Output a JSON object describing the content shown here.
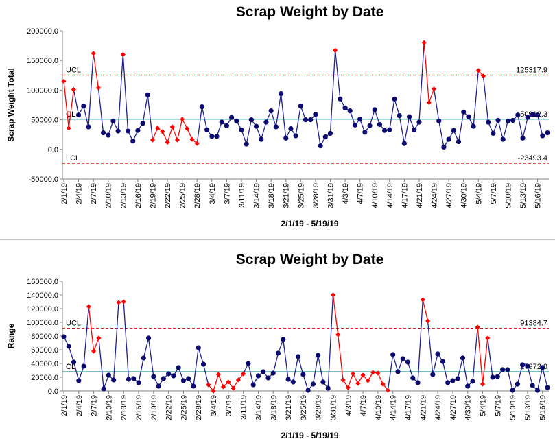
{
  "colors": {
    "line": "#1f1f8f",
    "point": "#0a0a6e",
    "out": "#ff0000",
    "cl": "#2e9a9a",
    "limit": "#d81f1f",
    "axis": "#808080"
  },
  "chart_data": [
    {
      "type": "line",
      "title": "Scrap Weight by Date",
      "xlabel": "2/1/19 - 5/19/19",
      "ylabel": "Scrap Weight Total",
      "ylim": [
        -50000,
        200000
      ],
      "yticks": [
        "200000.0",
        "150000.0",
        "100000.0",
        "50000.0",
        "0.0",
        "-50000.0"
      ],
      "ytick_values": [
        200000,
        150000,
        100000,
        50000,
        0,
        -50000
      ],
      "xticks": [
        "2/1/19",
        "2/4/19",
        "2/7/19",
        "2/10/19",
        "2/13/19",
        "2/16/19",
        "2/19/19",
        "2/22/19",
        "2/25/19",
        "2/28/19",
        "3/4/19",
        "3/7/19",
        "3/11/19",
        "3/14/19",
        "3/18/19",
        "3/21/19",
        "3/25/19",
        "3/28/19",
        "3/31/19",
        "4/3/19",
        "4/7/19",
        "4/10/19",
        "4/14/19",
        "4/17/19",
        "4/21/19",
        "4/24/19",
        "4/27/19",
        "4/30/19",
        "5/4/19",
        "5/7/19",
        "5/10/19",
        "5/13/19",
        "5/16/19"
      ],
      "ucl": 125317.9,
      "cl": 50912.3,
      "lcl": -23493.4,
      "ucl_label": "UCL",
      "cl_label": "CL",
      "lcl_label": "LCL",
      "ucl_text": "125317.9",
      "cl_text": "50912.3",
      "lcl_text": "-23493.4",
      "values": [
        115000,
        36000,
        101000,
        58000,
        73000,
        38000,
        162000,
        104000,
        28000,
        24000,
        48000,
        31000,
        160000,
        31000,
        14000,
        32000,
        44000,
        92000,
        16000,
        36000,
        30000,
        12000,
        38000,
        16000,
        51000,
        35000,
        17000,
        10000,
        72000,
        33000,
        22000,
        22000,
        46000,
        40000,
        54000,
        48000,
        33000,
        9000,
        50000,
        39000,
        17000,
        46000,
        65000,
        38000,
        94000,
        19000,
        35000,
        23000,
        73000,
        50000,
        50000,
        59000,
        6000,
        21000,
        27000,
        167000,
        85000,
        70000,
        65000,
        41000,
        51000,
        29000,
        40000,
        67000,
        42000,
        32000,
        33000,
        85000,
        57000,
        10000,
        55000,
        33000,
        46000,
        180000,
        79000,
        102000,
        48000,
        4000,
        17000,
        32000,
        13000,
        63000,
        55000,
        39000,
        133000,
        124000,
        46000,
        27000,
        49000,
        17000,
        48000,
        49000,
        58000,
        19000,
        54000,
        59000,
        58000,
        23000,
        28000
      ],
      "out_indices": [
        0,
        1,
        2,
        6,
        7,
        12,
        18,
        19,
        20,
        21,
        22,
        23,
        24,
        25,
        26,
        27,
        55,
        73,
        74,
        75,
        84,
        85
      ]
    },
    {
      "type": "line",
      "title": "Scrap Weight by Date",
      "xlabel": "2/1/19 - 5/19/19",
      "ylabel": "Range",
      "ylim": [
        0,
        160000
      ],
      "yticks": [
        "160000.0",
        "140000.0",
        "120000.0",
        "100000.0",
        "80000.0",
        "60000.0",
        "40000.0",
        "20000.0",
        "0.0"
      ],
      "ytick_values": [
        160000,
        140000,
        120000,
        100000,
        80000,
        60000,
        40000,
        20000,
        0
      ],
      "xticks": [
        "2/1/19",
        "2/4/19",
        "2/7/19",
        "2/10/19",
        "2/13/19",
        "2/16/19",
        "2/19/19",
        "2/22/19",
        "2/25/19",
        "2/28/19",
        "3/4/19",
        "3/7/19",
        "3/11/19",
        "3/14/19",
        "3/18/19",
        "3/21/19",
        "3/25/19",
        "3/28/19",
        "3/31/19",
        "4/3/19",
        "4/7/19",
        "4/10/19",
        "4/14/19",
        "4/17/19",
        "4/21/19",
        "4/24/19",
        "4/27/19",
        "4/30/19",
        "5/4/19",
        "5/7/19",
        "5/10/19",
        "5/13/19",
        "5/16/19"
      ],
      "ucl": 91384.7,
      "cl": 27972.0,
      "ucl_label": "UCL",
      "cl_label": "CL",
      "ucl_text": "91384.7",
      "cl_text": "27972.0",
      "values": [
        79000,
        65000,
        42000,
        15000,
        36000,
        123000,
        58000,
        77000,
        3000,
        23000,
        16000,
        129000,
        130000,
        17000,
        18000,
        12000,
        48000,
        77000,
        21000,
        7000,
        18000,
        25000,
        22000,
        34000,
        15000,
        18000,
        7000,
        63000,
        39000,
        9000,
        0,
        24000,
        6000,
        13000,
        4000,
        16000,
        25000,
        40000,
        9000,
        22000,
        28000,
        19000,
        26000,
        55000,
        75000,
        17000,
        13000,
        50000,
        24000,
        1000,
        10000,
        52000,
        13000,
        4000,
        140000,
        82000,
        16000,
        5000,
        25000,
        11000,
        23000,
        15000,
        27000,
        26000,
        10000,
        1000,
        53000,
        28000,
        47000,
        42000,
        19000,
        12000,
        133000,
        102000,
        24000,
        54000,
        43000,
        12000,
        15000,
        18000,
        48000,
        7000,
        14000,
        93000,
        10000,
        77000,
        20000,
        21000,
        31000,
        31000,
        1000,
        10000,
        38000,
        36000,
        8000,
        1000,
        34000,
        5000
      ],
      "out_indices": [
        5,
        6,
        7,
        11,
        12,
        29,
        30,
        31,
        32,
        33,
        34,
        35,
        36,
        54,
        55,
        56,
        57,
        58,
        59,
        60,
        61,
        62,
        63,
        64,
        65,
        72,
        73,
        83,
        84,
        85
      ]
    }
  ]
}
